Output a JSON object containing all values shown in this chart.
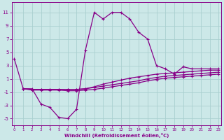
{
  "line1_x": [
    0,
    1,
    2,
    3,
    4,
    5,
    6,
    7,
    8,
    9,
    10,
    11,
    12,
    13,
    14,
    15,
    16,
    17,
    18,
    19,
    20,
    21,
    22,
    23
  ],
  "line1_y": [
    4.0,
    -0.5,
    -0.5,
    -2.8,
    -3.3,
    -4.8,
    -5.0,
    -3.6,
    5.3,
    11.0,
    10.0,
    11.0,
    11.0,
    10.0,
    8.0,
    7.0,
    3.0,
    2.5,
    1.7,
    2.8,
    2.5,
    2.5,
    2.5,
    2.5
  ],
  "line2_x": [
    1,
    2,
    3,
    4,
    5,
    6,
    7,
    8,
    9,
    10,
    11,
    12,
    13,
    14,
    15,
    16,
    17,
    18,
    19,
    20,
    21,
    22,
    23
  ],
  "line2_y": [
    -0.5,
    -0.6,
    -0.6,
    -0.6,
    -0.6,
    -0.6,
    -0.6,
    -0.5,
    -0.2,
    0.2,
    0.5,
    0.8,
    1.1,
    1.3,
    1.5,
    1.7,
    1.8,
    1.9,
    2.0,
    2.1,
    2.2,
    2.3,
    2.3
  ],
  "line3_x": [
    1,
    2,
    3,
    4,
    5,
    6,
    7,
    8,
    9,
    10,
    11,
    12,
    13,
    14,
    15,
    16,
    17,
    18,
    19,
    20,
    21,
    22,
    23
  ],
  "line3_y": [
    -0.5,
    -0.6,
    -0.6,
    -0.6,
    -0.6,
    -0.6,
    -0.6,
    -0.5,
    -0.3,
    -0.1,
    0.1,
    0.3,
    0.5,
    0.7,
    1.0,
    1.2,
    1.4,
    1.5,
    1.6,
    1.7,
    1.8,
    1.9,
    2.0
  ],
  "line4_x": [
    1,
    2,
    3,
    4,
    5,
    6,
    7,
    8,
    9,
    10,
    11,
    12,
    13,
    14,
    15,
    16,
    17,
    18,
    19,
    20,
    21,
    22,
    23
  ],
  "line4_y": [
    -0.5,
    -0.7,
    -0.7,
    -0.7,
    -0.7,
    -0.8,
    -0.8,
    -0.7,
    -0.6,
    -0.4,
    -0.2,
    0.0,
    0.2,
    0.4,
    0.7,
    0.9,
    1.1,
    1.2,
    1.3,
    1.4,
    1.5,
    1.6,
    1.7
  ],
  "background_color": "#cce8e8",
  "grid_color": "#aacfcf",
  "line_color": "#880088",
  "xlabel": "Windchill (Refroidissement éolien,°C)",
  "yticks": [
    -5,
    -3,
    -1,
    1,
    3,
    5,
    7,
    9,
    11
  ],
  "xticks": [
    0,
    1,
    2,
    3,
    4,
    5,
    6,
    7,
    8,
    9,
    10,
    11,
    12,
    13,
    14,
    15,
    16,
    17,
    18,
    19,
    20,
    21,
    22,
    23
  ],
  "ylim": [
    -6.0,
    12.5
  ],
  "xlim": [
    -0.3,
    23.3
  ]
}
